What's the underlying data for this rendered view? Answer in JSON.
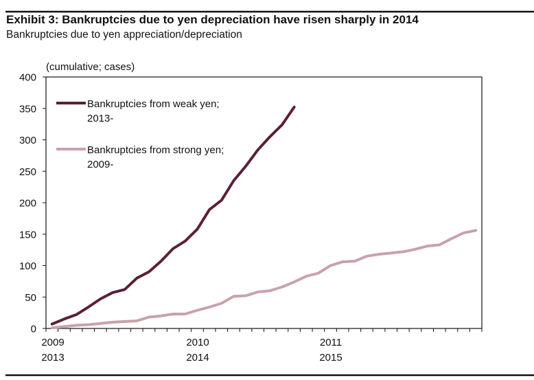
{
  "chart_data": {
    "type": "line",
    "title": "Exhibit 3: Bankruptcies due to yen depreciation have risen sharply in 2014",
    "subtitle": "Bankruptcies due to yen appreciation/depreciation",
    "ylabel": "(cumulative; cases)",
    "ylim": [
      0,
      400
    ],
    "yticks": [
      "0",
      "50",
      "100",
      "150",
      "200",
      "250",
      "300",
      "350",
      "400"
    ],
    "x_axis": "months since start (36 monthly ticks)",
    "xtick_labels": [
      {
        "top": "2009",
        "bottom": "2013"
      },
      {
        "top": "2010",
        "bottom": "2014"
      },
      {
        "top": "2011",
        "bottom": "2015"
      }
    ],
    "grid": false,
    "legend_position": "top-left",
    "series": [
      {
        "name": "Bankruptcies from weak yen; 2013-",
        "name_lines": [
          "Bankruptcies from weak yen;",
          "2013-"
        ],
        "color": "#5b1f38",
        "values": [
          7,
          15,
          22,
          34,
          47,
          57,
          62,
          80,
          90,
          107,
          127,
          139,
          158,
          189,
          204,
          235,
          258,
          284,
          305,
          324,
          352
        ]
      },
      {
        "name": "Bankruptcies from strong yen; 2009-",
        "name_lines": [
          "Bankruptcies from strong yen;",
          "2009-"
        ],
        "color": "#c8a2aa",
        "values": [
          1,
          3,
          5,
          6,
          8,
          10,
          11,
          12,
          18,
          20,
          23,
          23,
          29,
          34,
          40,
          51,
          52,
          58,
          60,
          66,
          74,
          83,
          88,
          100,
          106,
          107,
          115,
          118,
          120,
          122,
          126,
          131,
          133,
          143,
          152,
          156
        ]
      }
    ]
  }
}
